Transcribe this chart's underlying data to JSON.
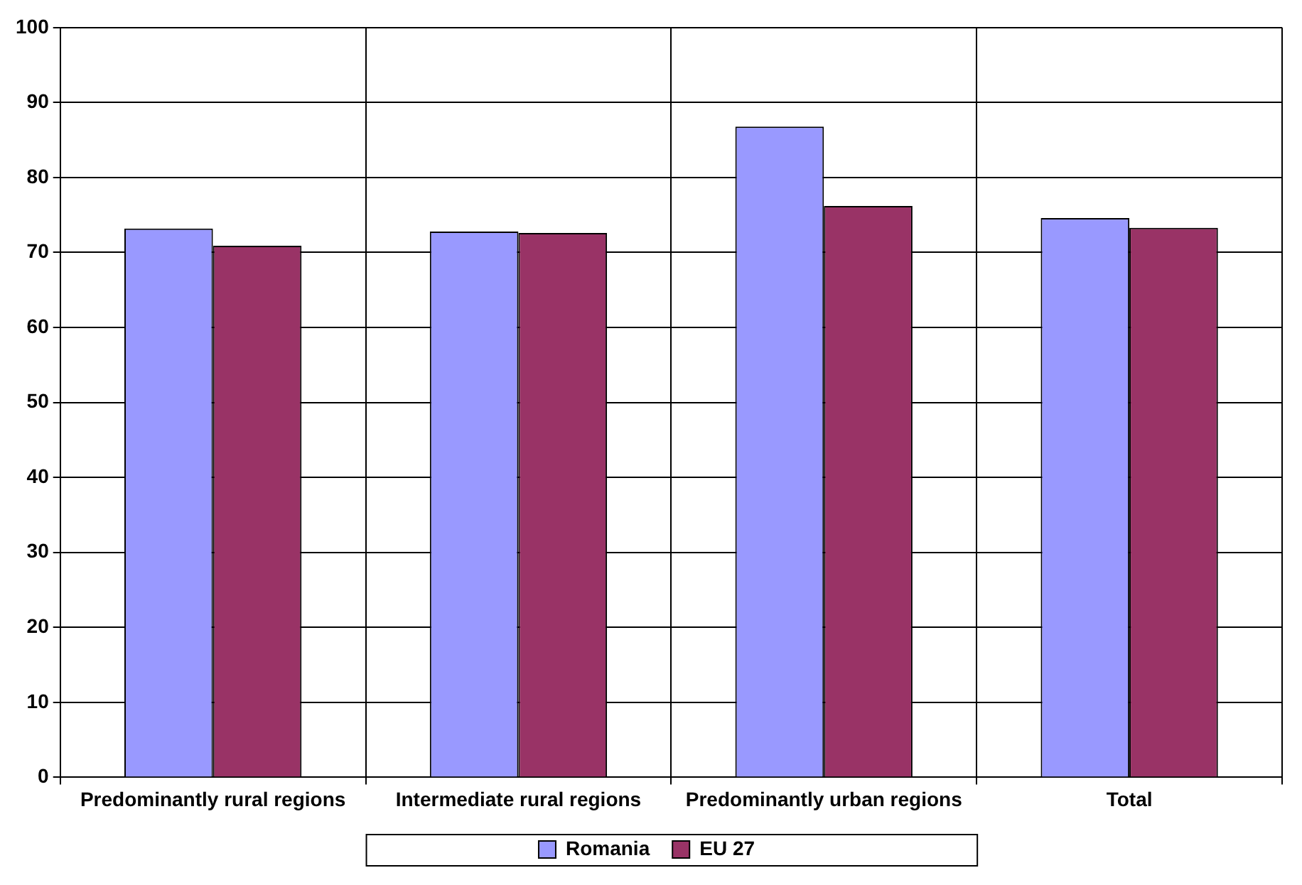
{
  "chart_data": {
    "type": "bar",
    "categories": [
      "Predominantly rural regions",
      "Intermediate rural regions",
      "Predominantly urban regions",
      "Total"
    ],
    "series": [
      {
        "name": "Romania",
        "color": "#9999ff",
        "values": [
          73.2,
          72.8,
          86.8,
          74.6
        ]
      },
      {
        "name": "EU 27",
        "color": "#993366",
        "values": [
          70.9,
          72.6,
          76.2,
          73.3
        ]
      }
    ],
    "ylim": [
      0,
      100
    ],
    "yticks": [
      0,
      10,
      20,
      30,
      40,
      50,
      60,
      70,
      80,
      90,
      100
    ],
    "grid": true,
    "legend": "bottom"
  }
}
